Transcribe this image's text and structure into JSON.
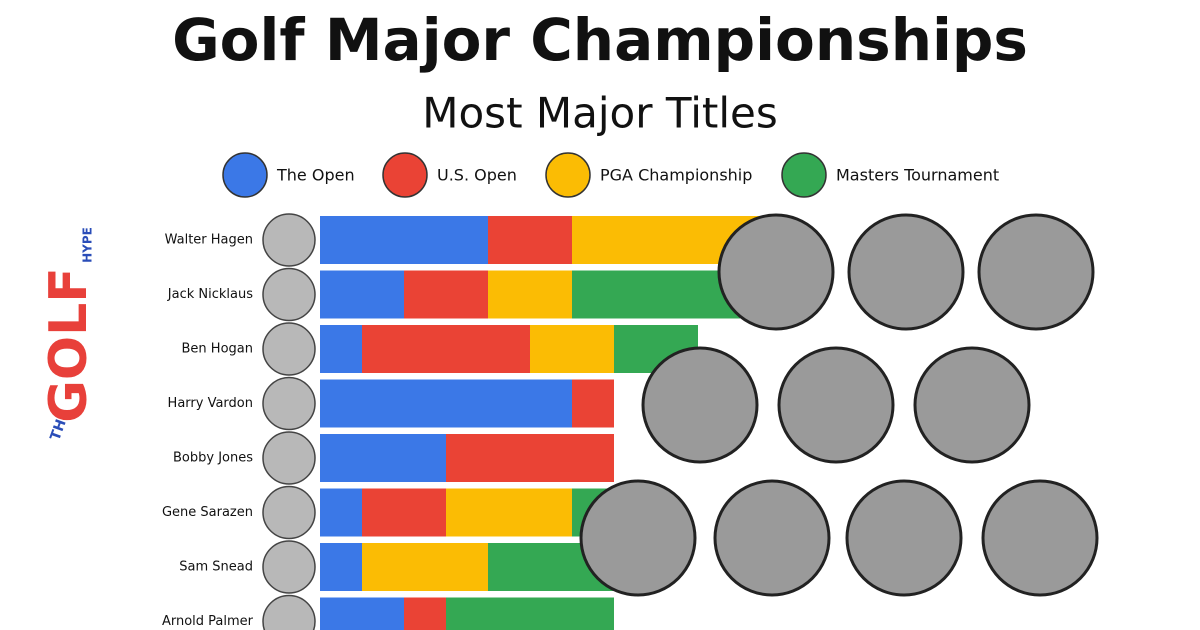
{
  "chart_data": {
    "type": "stacked-bar",
    "title": "Golf Major Championships",
    "subtitle": "Most Major Titles",
    "logo": {
      "the": "THE",
      "golf": "GOLF",
      "hype": "HYPE"
    },
    "categories": [
      "Walter Hagen",
      "Jack Nicklaus",
      "Ben Hogan",
      "Harry Vardon",
      "Bobby Jones",
      "Gene Sarazen",
      "Sam Snead",
      "Arnold Palmer"
    ],
    "series": [
      {
        "name": "The Open",
        "color": "#3b78e7",
        "values": [
          4,
          2,
          1,
          6,
          3,
          1,
          1,
          2
        ]
      },
      {
        "name": "U.S. Open",
        "color": "#ea4335",
        "values": [
          2,
          2,
          4,
          1,
          4,
          2,
          0,
          1
        ]
      },
      {
        "name": "PGA Championship",
        "color": "#fbbc04",
        "values": [
          5,
          2,
          2,
          0,
          0,
          3,
          3,
          0
        ]
      },
      {
        "name": "Masters Tournament",
        "color": "#34a853",
        "values": [
          0,
          4,
          2,
          0,
          0,
          1,
          3,
          4
        ]
      }
    ]
  }
}
